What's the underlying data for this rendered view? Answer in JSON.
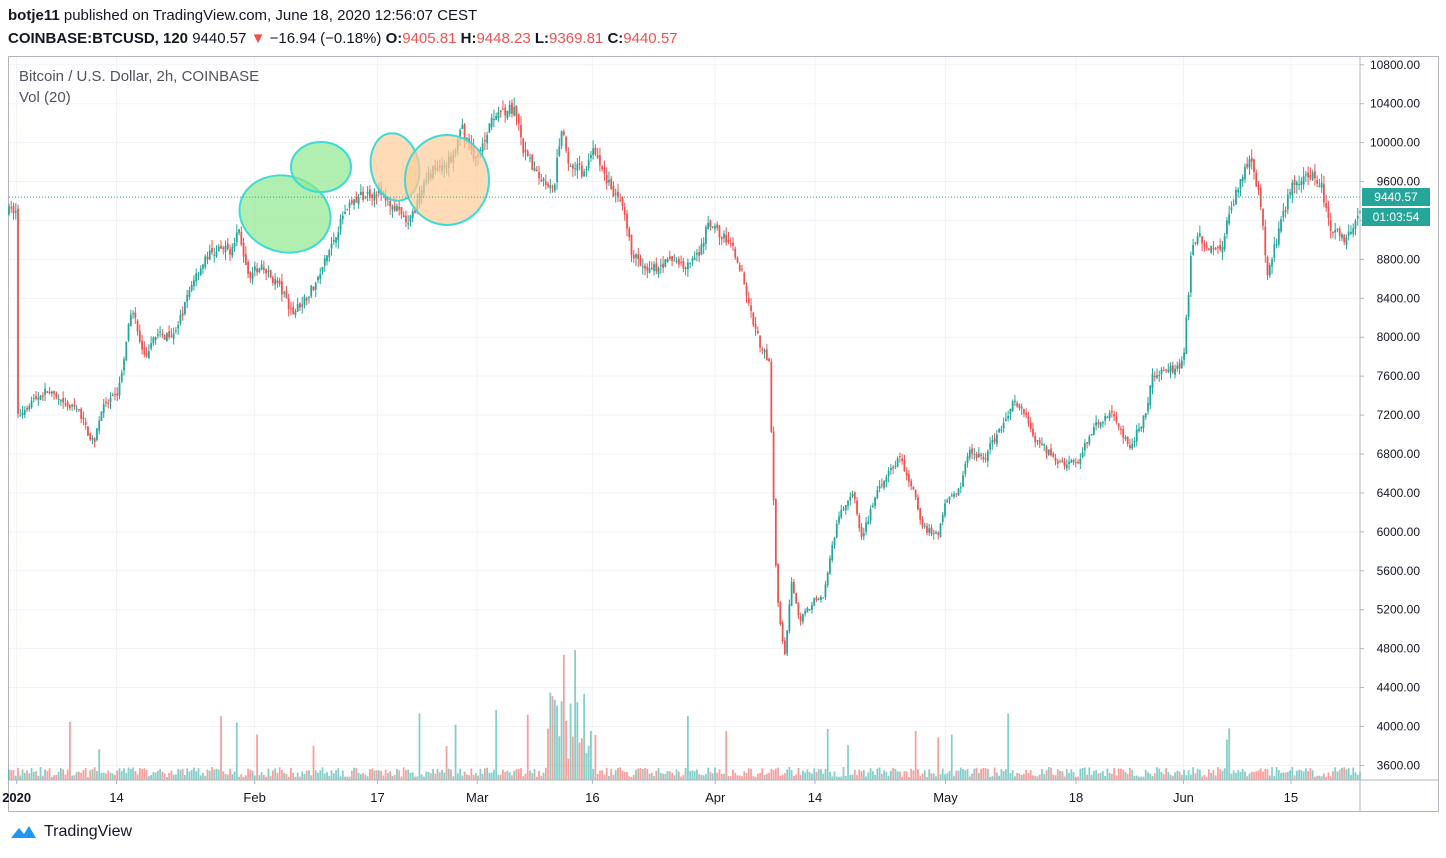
{
  "header": {
    "author": "botje11",
    "published": "published on TradingView.com, June 18, 2020 12:56:07 CEST",
    "symbol": "COINBASE:BTCUSD, 120",
    "last": "9440.57",
    "change_arrow": "▼",
    "change": "−16.94 (−0.18%)",
    "open_label": "O:",
    "open": "9405.81",
    "high_label": "H:",
    "high": "9448.23",
    "low_label": "L:",
    "low": "9369.81",
    "close_label": "C:",
    "close": "9440.57"
  },
  "legend": {
    "title": "Bitcoin / U.S. Dollar, 2h, COINBASE",
    "volume": "Vol (20)"
  },
  "price_badge": "9440.57",
  "countdown_badge": "01:03:54",
  "footer": {
    "brand": "TradingView"
  },
  "colors": {
    "up": "#26a69a",
    "down": "#ef5350",
    "grid": "#f0f3fa",
    "axis": "#b2b5be",
    "green_ellipse": "#8ee88e",
    "orange_ellipse": "#ffcc99",
    "ellipse_stroke": "#3ddad7"
  },
  "chart_data": {
    "type": "candlestick",
    "series": [
      {
        "name": "BTCUSD",
        "x": "date",
        "y": "price_usd"
      }
    ],
    "x_ticks": [
      "2020",
      "14",
      "Feb",
      "17",
      "Mar",
      "16",
      "Apr",
      "14",
      "May",
      "18",
      "Jun",
      "15"
    ],
    "y_ticks": [
      3600,
      4000,
      4400,
      4800,
      5200,
      5600,
      6000,
      6400,
      6800,
      7200,
      7600,
      8000,
      8400,
      8800,
      9200,
      9600,
      10000,
      10400,
      10800
    ],
    "y_tick_labels": [
      "3600.00",
      "4000.00",
      "4400.00",
      "4800.00",
      "5200.00",
      "5600.00",
      "6000.00",
      "6400.00",
      "6800.00",
      "7200.00",
      "7600.00",
      "8000.00",
      "8400.00",
      "8800.00",
      "",
      "9600.00",
      "10000.00",
      "10400.00",
      "10800.00"
    ],
    "ylim": [
      3450,
      10880
    ],
    "xlim": [
      "2019-12-31",
      "2020-06-24"
    ],
    "last_price": 9440.57,
    "path": [
      [
        "2020-01-01",
        7180
      ],
      [
        "2020-01-03",
        7350
      ],
      [
        "2020-01-05",
        7450
      ],
      [
        "2020-01-07",
        7300
      ],
      [
        "2020-01-09",
        7250
      ],
      [
        "2020-01-11",
        6900
      ],
      [
        "2020-01-12",
        7250
      ],
      [
        "2020-01-14",
        7400
      ],
      [
        "2020-01-15",
        7750
      ],
      [
        "2020-01-16",
        8350
      ],
      [
        "2020-01-17",
        7950
      ],
      [
        "2020-01-18",
        7750
      ],
      [
        "2020-01-19",
        8050
      ],
      [
        "2020-01-20",
        8000
      ],
      [
        "2020-01-22",
        8100
      ],
      [
        "2020-01-24",
        8600
      ],
      [
        "2020-01-26",
        8850
      ],
      [
        "2020-01-28",
        8900
      ],
      [
        "2020-01-29",
        8900
      ],
      [
        "2020-01-30",
        9100
      ],
      [
        "2020-01-31",
        8650
      ],
      [
        "2020-02-02",
        8700
      ],
      [
        "2020-02-04",
        8550
      ],
      [
        "2020-02-06",
        8250
      ],
      [
        "2020-02-07",
        8350
      ],
      [
        "2020-02-09",
        8550
      ],
      [
        "2020-02-11",
        8950
      ],
      [
        "2020-02-13",
        9350
      ],
      [
        "2020-02-15",
        9450
      ],
      [
        "2020-02-17",
        9500
      ],
      [
        "2020-02-19",
        9350
      ],
      [
        "2020-02-21",
        9150
      ],
      [
        "2020-02-22",
        9350
      ],
      [
        "2020-02-24",
        9700
      ],
      [
        "2020-02-26",
        9800
      ],
      [
        "2020-02-27",
        9850
      ],
      [
        "2020-02-28",
        10150
      ],
      [
        "2020-03-01",
        9800
      ],
      [
        "2020-03-03",
        10300
      ],
      [
        "2020-03-05",
        10350
      ],
      [
        "2020-03-06",
        10300
      ],
      [
        "2020-03-07",
        9900
      ],
      [
        "2020-03-09",
        9650
      ],
      [
        "2020-03-11",
        9550
      ],
      [
        "2020-03-12",
        10150
      ],
      [
        "2020-03-13",
        9750
      ],
      [
        "2020-03-15",
        9700
      ],
      [
        "2020-03-16",
        9900
      ],
      [
        "2020-03-18",
        9600
      ],
      [
        "2020-03-20",
        9300
      ],
      [
        "2020-03-21",
        8900
      ],
      [
        "2020-03-23",
        8650
      ],
      [
        "2020-03-25",
        8750
      ],
      [
        "2020-03-27",
        8800
      ],
      [
        "2020-03-28",
        8700
      ],
      [
        "2020-03-30",
        8850
      ],
      [
        "2020-03-31",
        9150
      ],
      [
        "2020-04-02",
        9050
      ],
      [
        "2020-04-04",
        8800
      ],
      [
        "2020-04-06",
        8150
      ],
      [
        "2020-04-07",
        7900
      ],
      [
        "2020-04-08",
        7750
      ],
      [
        "2020-04-09",
        5400
      ],
      [
        "2020-04-10",
        4700
      ],
      [
        "2020-04-11",
        5500
      ],
      [
        "2020-04-12",
        5100
      ],
      [
        "2020-04-14",
        5300
      ],
      [
        "2020-04-15",
        5300
      ],
      [
        "2020-04-17",
        6150
      ],
      [
        "2020-04-19",
        6400
      ],
      [
        "2020-04-20",
        5900
      ],
      [
        "2020-04-22",
        6400
      ],
      [
        "2020-04-24",
        6650
      ],
      [
        "2020-04-25",
        6750
      ],
      [
        "2020-04-27",
        6400
      ],
      [
        "2020-04-28",
        6050
      ],
      [
        "2020-04-30",
        5950
      ],
      [
        "2020-05-01",
        6350
      ],
      [
        "2020-05-03",
        6450
      ],
      [
        "2020-05-04",
        6850
      ],
      [
        "2020-05-06",
        6750
      ],
      [
        "2020-05-08",
        7050
      ],
      [
        "2020-05-10",
        7350
      ],
      [
        "2020-05-11",
        7250
      ],
      [
        "2020-05-13",
        6900
      ],
      [
        "2020-05-14",
        6850
      ],
      [
        "2020-05-16",
        6700
      ],
      [
        "2020-05-18",
        6700
      ],
      [
        "2020-05-20",
        7000
      ],
      [
        "2020-05-21",
        7150
      ],
      [
        "2020-05-23",
        7200
      ],
      [
        "2020-05-25",
        6850
      ],
      [
        "2020-05-27",
        7200
      ],
      [
        "2020-05-28",
        7600
      ],
      [
        "2020-05-30",
        7650
      ],
      [
        "2020-06-01",
        7750
      ],
      [
        "2020-06-02",
        8850
      ],
      [
        "2020-06-03",
        9050
      ],
      [
        "2020-06-05",
        8850
      ],
      [
        "2020-06-06",
        8950
      ],
      [
        "2020-06-08",
        9550
      ],
      [
        "2020-06-10",
        9850
      ],
      [
        "2020-06-11",
        9350
      ],
      [
        "2020-06-12",
        8650
      ],
      [
        "2020-06-14",
        9250
      ],
      [
        "2020-06-15",
        9550
      ],
      [
        "2020-06-17",
        9700
      ],
      [
        "2020-06-19",
        9550
      ],
      [
        "2020-06-20",
        9150
      ],
      [
        "2020-06-22",
        9000
      ],
      [
        "2020-06-24",
        9300
      ]
    ],
    "annotations": [
      {
        "shape": "ellipse",
        "fill": "green",
        "center": [
          "2020-02-12",
          9250
        ]
      },
      {
        "shape": "ellipse",
        "fill": "green",
        "center": [
          "2020-02-16",
          9800
        ]
      },
      {
        "shape": "ellipse",
        "fill": "orange",
        "center": [
          "2020-02-18",
          9800
        ]
      },
      {
        "shape": "ellipse",
        "fill": "orange",
        "center": [
          "2020-02-21",
          9650
        ]
      }
    ]
  }
}
